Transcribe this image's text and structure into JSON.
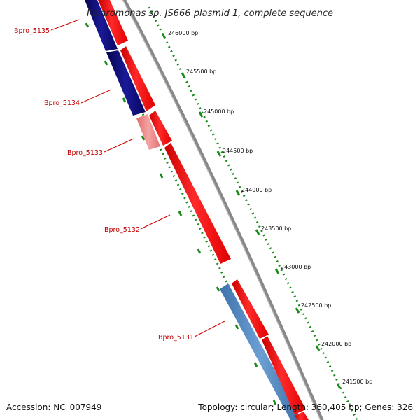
{
  "title": "Polaromonas sp. JS666 plasmid 1, complete sequence",
  "footer": {
    "accession": "Accession: NC_007949",
    "stats": "Topology: circular; Length: 360,405 bp; Genes: 326"
  },
  "ticks": [
    "246000 bp",
    "245500 bp",
    "245000 bp",
    "244500 bp",
    "244000 bp",
    "243500 bp",
    "243000 bp",
    "242500 bp",
    "242000 bp",
    "241500 bp"
  ],
  "genes": [
    "Bpro_5135",
    "Bpro_5134",
    "Bpro_5133",
    "Bpro_5132",
    "Bpro_5131"
  ],
  "colors": {
    "backbone": "#8c8c8c",
    "forward_cds": "#ee1111",
    "reverse_dark": "#0b0b80",
    "reverse_blue": "#4f86c0",
    "pink_cds": "#f08080",
    "tick_green": "#1a8a1a",
    "label_red": "#c00000"
  }
}
